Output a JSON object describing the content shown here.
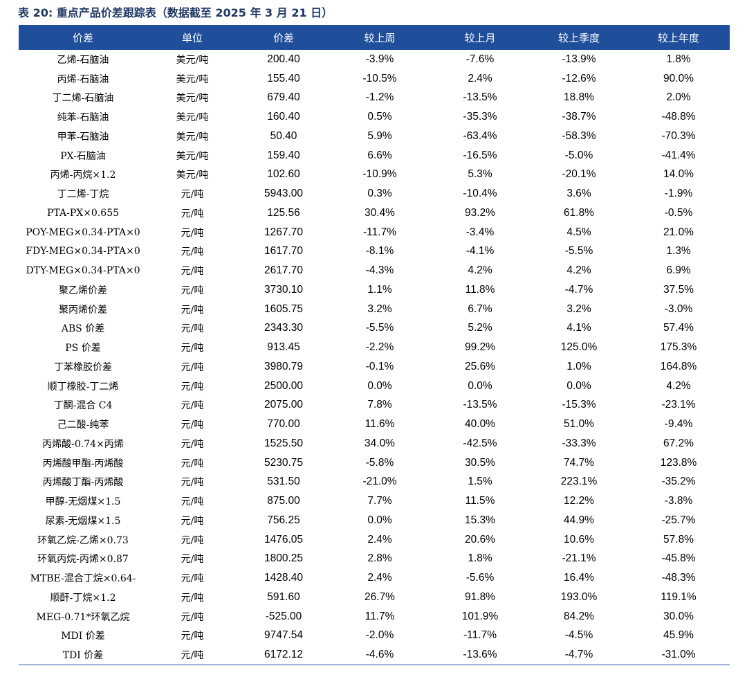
{
  "title": "表 20:  重点产品价差跟踪表（数据截至 2025 年 3 月 21 日）",
  "columns": [
    "价差",
    "单位",
    "价差",
    "较上周",
    "较上月",
    "较上季度",
    "较上年度"
  ],
  "rows": [
    [
      "乙烯-石脑油",
      "美元/吨",
      "200.40",
      "-3.9%",
      "-7.6%",
      "-13.9%",
      "1.8%"
    ],
    [
      "丙烯-石脑油",
      "美元/吨",
      "155.40",
      "-10.5%",
      "2.4%",
      "-12.6%",
      "90.0%"
    ],
    [
      "丁二烯-石脑油",
      "美元/吨",
      "679.40",
      "-1.2%",
      "-13.5%",
      "18.8%",
      "2.0%"
    ],
    [
      "纯苯-石脑油",
      "美元/吨",
      "160.40",
      "0.5%",
      "-35.3%",
      "-38.7%",
      "-48.8%"
    ],
    [
      "甲苯-石脑油",
      "美元/吨",
      "50.40",
      "5.9%",
      "-63.4%",
      "-58.3%",
      "-70.3%"
    ],
    [
      "PX-石脑油",
      "美元/吨",
      "159.40",
      "6.6%",
      "-16.5%",
      "-5.0%",
      "-41.4%"
    ],
    [
      "丙烯-丙烷×1.2",
      "美元/吨",
      "102.60",
      "-10.9%",
      "5.3%",
      "-20.1%",
      "14.0%"
    ],
    [
      "丁二烯-丁烷",
      "元/吨",
      "5943.00",
      "0.3%",
      "-10.4%",
      "3.6%",
      "-1.9%"
    ],
    [
      "PTA-PX×0.655",
      "元/吨",
      "125.56",
      "30.4%",
      "93.2%",
      "61.8%",
      "-0.5%"
    ],
    [
      "POY-MEG×0.34-PTA×0",
      "元/吨",
      "1267.70",
      "-11.7%",
      "-3.4%",
      "4.5%",
      "21.0%"
    ],
    [
      "FDY-MEG×0.34-PTA×0",
      "元/吨",
      "1617.70",
      "-8.1%",
      "-4.1%",
      "-5.5%",
      "1.3%"
    ],
    [
      "DTY-MEG×0.34-PTA×0",
      "元/吨",
      "2617.70",
      "-4.3%",
      "4.2%",
      "4.2%",
      "6.9%"
    ],
    [
      "聚乙烯价差",
      "元/吨",
      "3730.10",
      "1.1%",
      "11.8%",
      "-4.7%",
      "37.5%"
    ],
    [
      "聚丙烯价差",
      "元/吨",
      "1605.75",
      "3.2%",
      "6.7%",
      "3.2%",
      "-3.0%"
    ],
    [
      "ABS 价差",
      "元/吨",
      "2343.30",
      "-5.5%",
      "5.2%",
      "4.1%",
      "57.4%"
    ],
    [
      "PS 价差",
      "元/吨",
      "913.45",
      "-2.2%",
      "99.2%",
      "125.0%",
      "175.3%"
    ],
    [
      "丁苯橡胶价差",
      "元/吨",
      "3980.79",
      "-0.1%",
      "25.6%",
      "1.0%",
      "164.8%"
    ],
    [
      "顺丁橡胶-丁二烯",
      "元/吨",
      "2500.00",
      "0.0%",
      "0.0%",
      "0.0%",
      "4.2%"
    ],
    [
      "丁酮-混合 C4",
      "元/吨",
      "2075.00",
      "7.8%",
      "-13.5%",
      "-15.3%",
      "-23.1%"
    ],
    [
      "己二酸-纯苯",
      "元/吨",
      "770.00",
      "11.6%",
      "40.0%",
      "51.0%",
      "-9.4%"
    ],
    [
      "丙烯酸-0.74×丙烯",
      "元/吨",
      "1525.50",
      "34.0%",
      "-42.5%",
      "-33.3%",
      "67.2%"
    ],
    [
      "丙烯酸甲酯-丙烯酸",
      "元/吨",
      "5230.75",
      "-5.8%",
      "30.5%",
      "74.7%",
      "123.8%"
    ],
    [
      "丙烯酸丁酯-丙烯酸",
      "元/吨",
      "531.50",
      "-21.0%",
      "1.5%",
      "223.1%",
      "-35.2%"
    ],
    [
      "甲醇-无烟煤×1.5",
      "元/吨",
      "875.00",
      "7.7%",
      "11.5%",
      "12.2%",
      "-3.8%"
    ],
    [
      "尿素-无烟煤×1.5",
      "元/吨",
      "756.25",
      "0.0%",
      "15.3%",
      "44.9%",
      "-25.7%"
    ],
    [
      "环氧乙烷-乙烯×0.73",
      "元/吨",
      "1476.05",
      "2.4%",
      "20.6%",
      "10.6%",
      "57.8%"
    ],
    [
      "环氧丙烷-丙烯×0.87",
      "元/吨",
      "1800.25",
      "2.8%",
      "1.8%",
      "-21.1%",
      "-45.8%"
    ],
    [
      "MTBE-混合丁烷×0.64-",
      "元/吨",
      "1428.40",
      "2.4%",
      "-5.6%",
      "16.4%",
      "-48.3%"
    ],
    [
      "顺酐-丁烷×1.2",
      "元/吨",
      "591.60",
      "26.7%",
      "91.8%",
      "193.0%",
      "119.1%"
    ],
    [
      "MEG-0.71*环氧乙烷",
      "元/吨",
      "-525.00",
      "11.7%",
      "101.9%",
      "84.2%",
      "30.0%"
    ],
    [
      "MDI 价差",
      "元/吨",
      "9747.54",
      "-2.0%",
      "-11.7%",
      "-4.5%",
      "45.9%"
    ],
    [
      "TDI 价差",
      "元/吨",
      "6172.12",
      "-4.6%",
      "-13.6%",
      "-4.7%",
      "-31.0%"
    ]
  ]
}
